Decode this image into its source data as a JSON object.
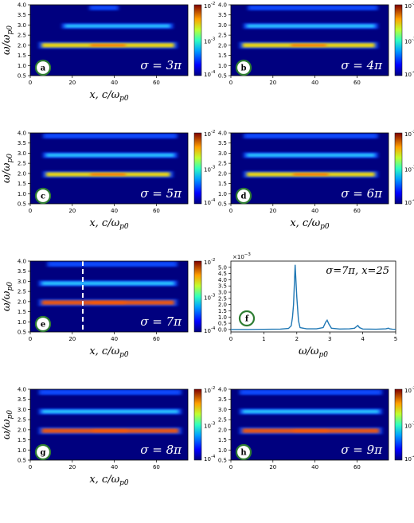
{
  "chart_data": [
    {
      "panel": "a",
      "type": "heatmap",
      "sigma_label": "σ = 3π",
      "xlim": [
        0,
        75
      ],
      "ylim": [
        0.5,
        4.0
      ],
      "xticks": [
        0,
        20,
        40,
        60
      ],
      "yticks": [
        0.5,
        1.0,
        1.5,
        2.0,
        2.5,
        3.0,
        3.5,
        4.0
      ],
      "xlabel": "x, c/ω_p0",
      "ylabel": "ω/ω_p0",
      "colorbar": {
        "scale": "log",
        "min": "10^-4",
        "max": "10^-2",
        "ticks": [
          "10^-2",
          "10^-3",
          "10^-4"
        ]
      },
      "bands": [
        {
          "omega": 2.0,
          "x_start": 4,
          "x_end": 70,
          "intensity": 0.9
        },
        {
          "omega": 2.95,
          "x_start": 15,
          "x_end": 68,
          "intensity": 0.5
        },
        {
          "omega": 3.85,
          "x_start": 28,
          "x_end": 42,
          "intensity": 0.25
        }
      ]
    },
    {
      "panel": "b",
      "type": "heatmap",
      "sigma_label": "σ = 4π",
      "xlim": [
        0,
        75
      ],
      "ylim": [
        0.5,
        4.0
      ],
      "xticks": [
        0,
        20,
        40,
        60
      ],
      "yticks": [
        0.5,
        1.0,
        1.5,
        2.0,
        2.5,
        3.0,
        3.5,
        4.0
      ],
      "xlabel": "",
      "ylabel": "",
      "colorbar": {
        "scale": "log",
        "min": "10^-4",
        "max": "10^-2",
        "ticks": [
          "10^-2",
          "10^-3",
          "10^-4"
        ]
      },
      "bands": [
        {
          "omega": 2.0,
          "x_start": 4,
          "x_end": 70,
          "intensity": 0.9
        },
        {
          "omega": 2.95,
          "x_start": 6,
          "x_end": 70,
          "intensity": 0.55
        },
        {
          "omega": 3.85,
          "x_start": 8,
          "x_end": 70,
          "intensity": 0.3
        }
      ]
    },
    {
      "panel": "c",
      "type": "heatmap",
      "sigma_label": "σ = 5π",
      "xlim": [
        0,
        75
      ],
      "ylim": [
        0.5,
        4.0
      ],
      "xticks": [
        0,
        20,
        40,
        60
      ],
      "yticks": [
        0.5,
        1.0,
        1.5,
        2.0,
        2.5,
        3.0,
        3.5,
        4.0
      ],
      "xlabel": "x, c/ω_p0",
      "ylabel": "ω/ω_p0",
      "colorbar": {
        "scale": "log",
        "min": "10^-4",
        "max": "10^-2",
        "ticks": [
          "10^-2",
          "10^-3",
          "10^-4"
        ]
      },
      "bands": [
        {
          "omega": 1.95,
          "x_start": 6,
          "x_end": 68,
          "intensity": 0.85
        },
        {
          "omega": 2.9,
          "x_start": 6,
          "x_end": 70,
          "intensity": 0.55
        },
        {
          "omega": 3.85,
          "x_start": 6,
          "x_end": 70,
          "intensity": 0.35
        }
      ]
    },
    {
      "panel": "d",
      "type": "heatmap",
      "sigma_label": "σ = 6π",
      "xlim": [
        0,
        75
      ],
      "ylim": [
        0.5,
        4.0
      ],
      "xticks": [
        0,
        20,
        40,
        60
      ],
      "yticks": [
        0.5,
        1.0,
        1.5,
        2.0,
        2.5,
        3.0,
        3.5,
        4.0
      ],
      "xlabel": "x, c/ω_p0",
      "ylabel": "",
      "colorbar": {
        "scale": "log",
        "min": "10^-4",
        "max": "10^-2",
        "ticks": [
          "10^-2",
          "10^-3",
          "10^-4"
        ]
      },
      "bands": [
        {
          "omega": 1.95,
          "x_start": 6,
          "x_end": 70,
          "intensity": 0.85
        },
        {
          "omega": 2.9,
          "x_start": 6,
          "x_end": 70,
          "intensity": 0.55
        },
        {
          "omega": 3.85,
          "x_start": 6,
          "x_end": 70,
          "intensity": 0.35
        }
      ]
    },
    {
      "panel": "e",
      "type": "heatmap",
      "sigma_label": "σ = 7π",
      "xlim": [
        0,
        75
      ],
      "ylim": [
        0.5,
        4.0
      ],
      "xticks": [
        0,
        20,
        40,
        60
      ],
      "yticks": [
        0.5,
        1.0,
        1.5,
        2.0,
        2.5,
        3.0,
        3.5,
        4.0
      ],
      "xlabel": "x, c/ω_p0",
      "ylabel": "ω/ω_p0",
      "colorbar": {
        "scale": "log",
        "min": "10^-4",
        "max": "10^-2",
        "ticks": [
          "10^-2",
          "10^-3",
          "10^-4"
        ]
      },
      "marker_x": 25,
      "bands": [
        {
          "omega": 1.95,
          "x_start": 4,
          "x_end": 70,
          "intensity": 0.95
        },
        {
          "omega": 2.9,
          "x_start": 4,
          "x_end": 70,
          "intensity": 0.6
        },
        {
          "omega": 3.85,
          "x_start": 8,
          "x_end": 70,
          "intensity": 0.4
        }
      ]
    },
    {
      "panel": "f",
      "type": "line",
      "annotation": "σ=7π, x=25",
      "xlabel": "ω/ω_p0",
      "ylabel": "",
      "y_multiplier": "×10^-3",
      "xlim": [
        0,
        5
      ],
      "ylim": [
        -0.2,
        5.5
      ],
      "xticks": [
        0,
        1,
        2,
        3,
        4,
        5
      ],
      "yticks": [
        0.0,
        0.5,
        1.0,
        1.5,
        2.0,
        2.5,
        3.0,
        3.5,
        4.0,
        4.5,
        5.0
      ],
      "x": [
        0,
        0.5,
        1.0,
        1.5,
        1.75,
        1.83,
        1.87,
        1.9,
        1.95,
        2.0,
        2.05,
        2.1,
        2.3,
        2.6,
        2.8,
        2.88,
        2.92,
        2.97,
        3.05,
        3.3,
        3.6,
        3.75,
        3.82,
        3.85,
        3.9,
        4.0,
        4.4,
        4.7,
        4.78,
        4.82,
        4.9,
        5.0
      ],
      "y": [
        0.0,
        0.0,
        0.01,
        0.03,
        0.08,
        0.3,
        1.0,
        2.0,
        5.2,
        2.6,
        0.7,
        0.15,
        0.05,
        0.05,
        0.15,
        0.6,
        0.75,
        0.45,
        0.1,
        0.04,
        0.05,
        0.1,
        0.25,
        0.32,
        0.15,
        0.04,
        0.02,
        0.05,
        0.1,
        0.05,
        0.02,
        0.01
      ]
    },
    {
      "panel": "g",
      "type": "heatmap",
      "sigma_label": "σ = 8π",
      "xlim": [
        0,
        75
      ],
      "ylim": [
        0.5,
        4.0
      ],
      "xticks": [
        0,
        20,
        40,
        60
      ],
      "yticks": [
        0.5,
        1.0,
        1.5,
        2.0,
        2.5,
        3.0,
        3.5,
        4.0
      ],
      "xlabel": "x, c/ω_p0",
      "ylabel": "ω/ω_p0",
      "colorbar": {
        "scale": "log",
        "min": "10^-4",
        "max": "10^-2",
        "ticks": [
          "10^-2",
          "10^-3",
          "10^-4"
        ]
      },
      "bands": [
        {
          "omega": 1.95,
          "x_start": 4,
          "x_end": 72,
          "intensity": 0.95
        },
        {
          "omega": 2.9,
          "x_start": 4,
          "x_end": 72,
          "intensity": 0.6
        },
        {
          "omega": 3.85,
          "x_start": 4,
          "x_end": 72,
          "intensity": 0.4
        }
      ]
    },
    {
      "panel": "h",
      "type": "heatmap",
      "sigma_label": "σ = 9π",
      "xlim": [
        0,
        75
      ],
      "ylim": [
        0.5,
        4.0
      ],
      "xticks": [
        0,
        20,
        40,
        60
      ],
      "yticks": [
        0.5,
        1.0,
        1.5,
        2.0,
        2.5,
        3.0,
        3.5,
        4.0
      ],
      "xlabel": "",
      "ylabel": "",
      "colorbar": {
        "scale": "log",
        "min": "10^-4",
        "max": "10^-2",
        "ticks": [
          "10^-2",
          "10^-3",
          "10^-4"
        ]
      },
      "bands": [
        {
          "omega": 1.95,
          "x_start": 4,
          "x_end": 72,
          "intensity": 0.95
        },
        {
          "omega": 2.9,
          "x_start": 4,
          "x_end": 72,
          "intensity": 0.6
        },
        {
          "omega": 3.85,
          "x_start": 4,
          "x_end": 72,
          "intensity": 0.4
        }
      ]
    }
  ],
  "colors": {
    "background": "#00007f",
    "band_low": "#0a4cff",
    "band_mid": "#2fd0ff",
    "band_hi": "#ffe400",
    "band_peak": "#ff5a00",
    "line": "#1f77b4",
    "badge_ring": "#2e7d32",
    "marker": "#ffffff"
  }
}
